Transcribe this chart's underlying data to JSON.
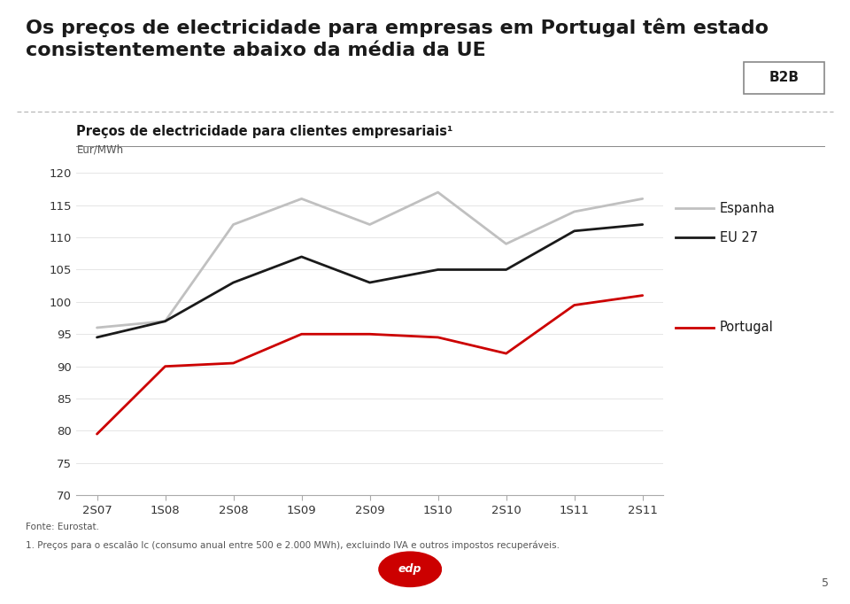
{
  "title_line1": "Os preços de electricidade para empresas em Portugal têm estado",
  "title_line2": "consistentemente abaixo da média da UE",
  "badge": "B2B",
  "subtitle": "Preços de electricidade para clientes empresariais¹",
  "unit": "Eur/MWh",
  "x_labels": [
    "2S07",
    "1S08",
    "2S08",
    "1S09",
    "2S09",
    "1S10",
    "2S10",
    "1S11",
    "2S11"
  ],
  "espanha": [
    96,
    97,
    112,
    116,
    112,
    117,
    109,
    114,
    116
  ],
  "eu27": [
    94.5,
    97,
    103,
    107,
    103,
    105,
    105,
    111,
    112
  ],
  "portugal": [
    79.5,
    90,
    90.5,
    95,
    95,
    94.5,
    92,
    99.5,
    101
  ],
  "ylim": [
    70,
    122
  ],
  "yticks": [
    70,
    75,
    80,
    85,
    90,
    95,
    100,
    105,
    110,
    115,
    120
  ],
  "espanha_color": "#c0c0c0",
  "eu27_color": "#1a1a1a",
  "portugal_color": "#cc0000",
  "footnote1": "Fonte: Eurostat.",
  "footnote2": "1. Preços para o escalão Ic (consumo anual entre 500 e 2.000 MWh), excluindo IVA e outros impostos recuperáveis.",
  "page_number": "5",
  "bg_color": "#ffffff",
  "title_fontsize": 16,
  "subtitle_fontsize": 10.5,
  "axis_fontsize": 9.5,
  "legend_fontsize": 10.5,
  "line_width": 2.0
}
